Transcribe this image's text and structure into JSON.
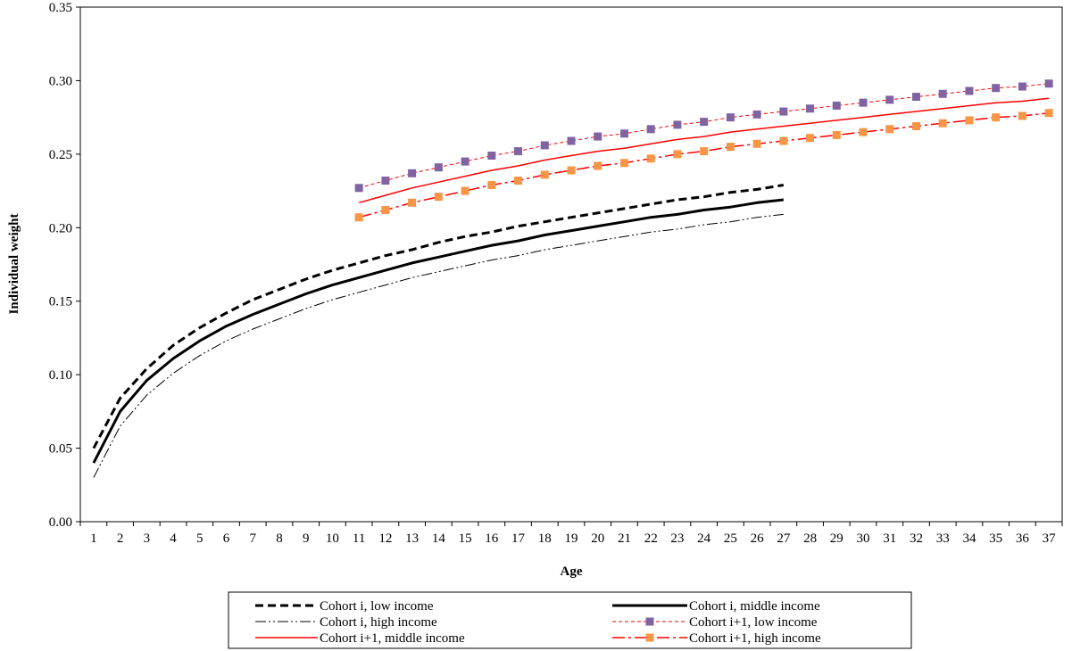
{
  "chart_data": {
    "type": "line",
    "title": "",
    "xlabel": "Age",
    "ylabel": "Individual weight",
    "x": [
      1,
      2,
      3,
      4,
      5,
      6,
      7,
      8,
      9,
      10,
      11,
      12,
      13,
      14,
      15,
      16,
      17,
      18,
      19,
      20,
      21,
      22,
      23,
      24,
      25,
      26,
      27,
      28,
      29,
      30,
      31,
      32,
      33,
      34,
      35,
      36,
      37
    ],
    "ylim": [
      0,
      0.35
    ],
    "yticks": [
      "0.00",
      "0.05",
      "0.10",
      "0.15",
      "0.20",
      "0.25",
      "0.30",
      "0.35"
    ],
    "xticks": [
      "1",
      "2",
      "3",
      "4",
      "5",
      "6",
      "7",
      "8",
      "9",
      "10",
      "11",
      "12",
      "13",
      "14",
      "15",
      "16",
      "17",
      "18",
      "19",
      "20",
      "21",
      "22",
      "23",
      "24",
      "25",
      "26",
      "27",
      "28",
      "29",
      "30",
      "31",
      "32",
      "33",
      "34",
      "35",
      "36",
      "37"
    ],
    "grid": false,
    "legend_position": "bottom",
    "series": [
      {
        "name": "Cohort i, low income",
        "color": "#000000",
        "style": "dashed-bold",
        "marker": "none",
        "x": [
          1,
          2,
          3,
          4,
          5,
          6,
          7,
          8,
          9,
          10,
          11,
          12,
          13,
          14,
          15,
          16,
          17,
          18,
          19,
          20,
          21,
          22,
          23,
          24,
          25,
          26,
          27
        ],
        "values": [
          0.05,
          0.084,
          0.104,
          0.12,
          0.132,
          0.142,
          0.151,
          0.158,
          0.165,
          0.171,
          0.176,
          0.181,
          0.185,
          0.19,
          0.194,
          0.197,
          0.201,
          0.204,
          0.207,
          0.21,
          0.213,
          0.216,
          0.219,
          0.221,
          0.224,
          0.226,
          0.229
        ]
      },
      {
        "name": "Cohort i, middle income",
        "color": "#000000",
        "style": "solid-bold",
        "marker": "none",
        "x": [
          1,
          2,
          3,
          4,
          5,
          6,
          7,
          8,
          9,
          10,
          11,
          12,
          13,
          14,
          15,
          16,
          17,
          18,
          19,
          20,
          21,
          22,
          23,
          24,
          25,
          26,
          27
        ],
        "values": [
          0.04,
          0.075,
          0.096,
          0.111,
          0.123,
          0.133,
          0.141,
          0.148,
          0.155,
          0.161,
          0.166,
          0.171,
          0.176,
          0.18,
          0.184,
          0.188,
          0.191,
          0.195,
          0.198,
          0.201,
          0.204,
          0.207,
          0.209,
          0.212,
          0.214,
          0.217,
          0.219
        ]
      },
      {
        "name": "Cohort i, high income",
        "color": "#000000",
        "style": "dash-dot-dot",
        "marker": "none",
        "x": [
          1,
          2,
          3,
          4,
          5,
          6,
          7,
          8,
          9,
          10,
          11,
          12,
          13,
          14,
          15,
          16,
          17,
          18,
          19,
          20,
          21,
          22,
          23,
          24,
          25,
          26,
          27
        ],
        "values": [
          0.03,
          0.065,
          0.086,
          0.101,
          0.113,
          0.123,
          0.131,
          0.138,
          0.145,
          0.151,
          0.156,
          0.161,
          0.166,
          0.17,
          0.174,
          0.178,
          0.181,
          0.185,
          0.188,
          0.191,
          0.194,
          0.197,
          0.199,
          0.202,
          0.204,
          0.207,
          0.209
        ]
      },
      {
        "name": "Cohort i+1, low income",
        "color": "#ff0000",
        "marker_color": "#8064a2",
        "style": "dashed-thin",
        "marker": "square",
        "x": [
          11,
          12,
          13,
          14,
          15,
          16,
          17,
          18,
          19,
          20,
          21,
          22,
          23,
          24,
          25,
          26,
          27,
          28,
          29,
          30,
          31,
          32,
          33,
          34,
          35,
          36,
          37
        ],
        "values": [
          0.227,
          0.232,
          0.237,
          0.241,
          0.245,
          0.249,
          0.252,
          0.256,
          0.259,
          0.262,
          0.264,
          0.267,
          0.27,
          0.272,
          0.275,
          0.277,
          0.279,
          0.281,
          0.283,
          0.285,
          0.287,
          0.289,
          0.291,
          0.293,
          0.295,
          0.296,
          0.298
        ]
      },
      {
        "name": "Cohort i+1, middle income",
        "color": "#ff0000",
        "style": "solid-thin",
        "marker": "none",
        "x": [
          11,
          12,
          13,
          14,
          15,
          16,
          17,
          18,
          19,
          20,
          21,
          22,
          23,
          24,
          25,
          26,
          27,
          28,
          29,
          30,
          31,
          32,
          33,
          34,
          35,
          36,
          37
        ],
        "values": [
          0.217,
          0.222,
          0.227,
          0.231,
          0.235,
          0.239,
          0.242,
          0.246,
          0.249,
          0.252,
          0.254,
          0.257,
          0.26,
          0.262,
          0.265,
          0.267,
          0.269,
          0.271,
          0.273,
          0.275,
          0.277,
          0.279,
          0.281,
          0.283,
          0.285,
          0.286,
          0.288
        ]
      },
      {
        "name": "Cohort i+1, high income",
        "color": "#ff0000",
        "marker_color": "#f79646",
        "style": "long-dash-dot",
        "marker": "square",
        "x": [
          11,
          12,
          13,
          14,
          15,
          16,
          17,
          18,
          19,
          20,
          21,
          22,
          23,
          24,
          25,
          26,
          27,
          28,
          29,
          30,
          31,
          32,
          33,
          34,
          35,
          36,
          37
        ],
        "values": [
          0.207,
          0.212,
          0.217,
          0.221,
          0.225,
          0.229,
          0.232,
          0.236,
          0.239,
          0.242,
          0.244,
          0.247,
          0.25,
          0.252,
          0.255,
          0.257,
          0.259,
          0.261,
          0.263,
          0.265,
          0.267,
          0.269,
          0.271,
          0.273,
          0.275,
          0.276,
          0.278
        ]
      }
    ]
  }
}
